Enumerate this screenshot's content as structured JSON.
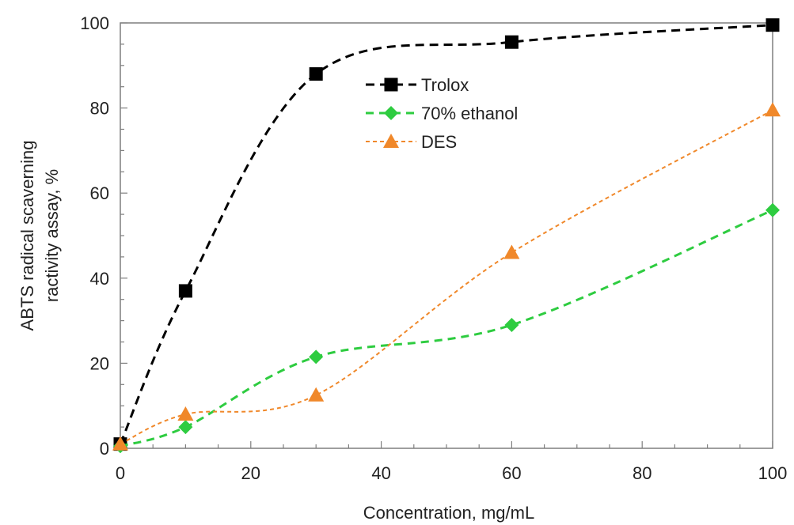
{
  "chart_data": {
    "type": "line",
    "xlabel": "Concentration, mg/mL",
    "ylabel_lines": [
      "ABTS radical scaverning",
      "ractivity assay, %"
    ],
    "xlim": [
      0,
      100
    ],
    "ylim": [
      0,
      100
    ],
    "x_ticks": [
      0,
      20,
      40,
      60,
      80,
      100
    ],
    "y_ticks": [
      0,
      20,
      40,
      60,
      80,
      100
    ],
    "x_tick_labels": [
      "0",
      "20",
      "40",
      "60",
      "80",
      "100"
    ],
    "y_tick_labels": [
      "0",
      "20",
      "40",
      "60",
      "80",
      "100"
    ],
    "grid": false,
    "legend_position": "top-center",
    "series": [
      {
        "name": "Trolox",
        "marker": "square",
        "line_style": "long-dash",
        "color": "#000000",
        "x": [
          0,
          10,
          30,
          60,
          100
        ],
        "y": [
          1,
          37,
          88,
          95.5,
          99.5
        ]
      },
      {
        "name": "70% ethanol",
        "marker": "diamond",
        "line_style": "dash",
        "color": "#2ecc40",
        "x": [
          0,
          10,
          30,
          60,
          100
        ],
        "y": [
          0.5,
          5,
          21.5,
          29,
          56
        ]
      },
      {
        "name": "DES",
        "marker": "triangle",
        "line_style": "short-dash",
        "color": "#f0882a",
        "x": [
          0,
          10,
          30,
          60,
          100
        ],
        "y": [
          1,
          8,
          12.5,
          46,
          79.5
        ]
      }
    ]
  }
}
